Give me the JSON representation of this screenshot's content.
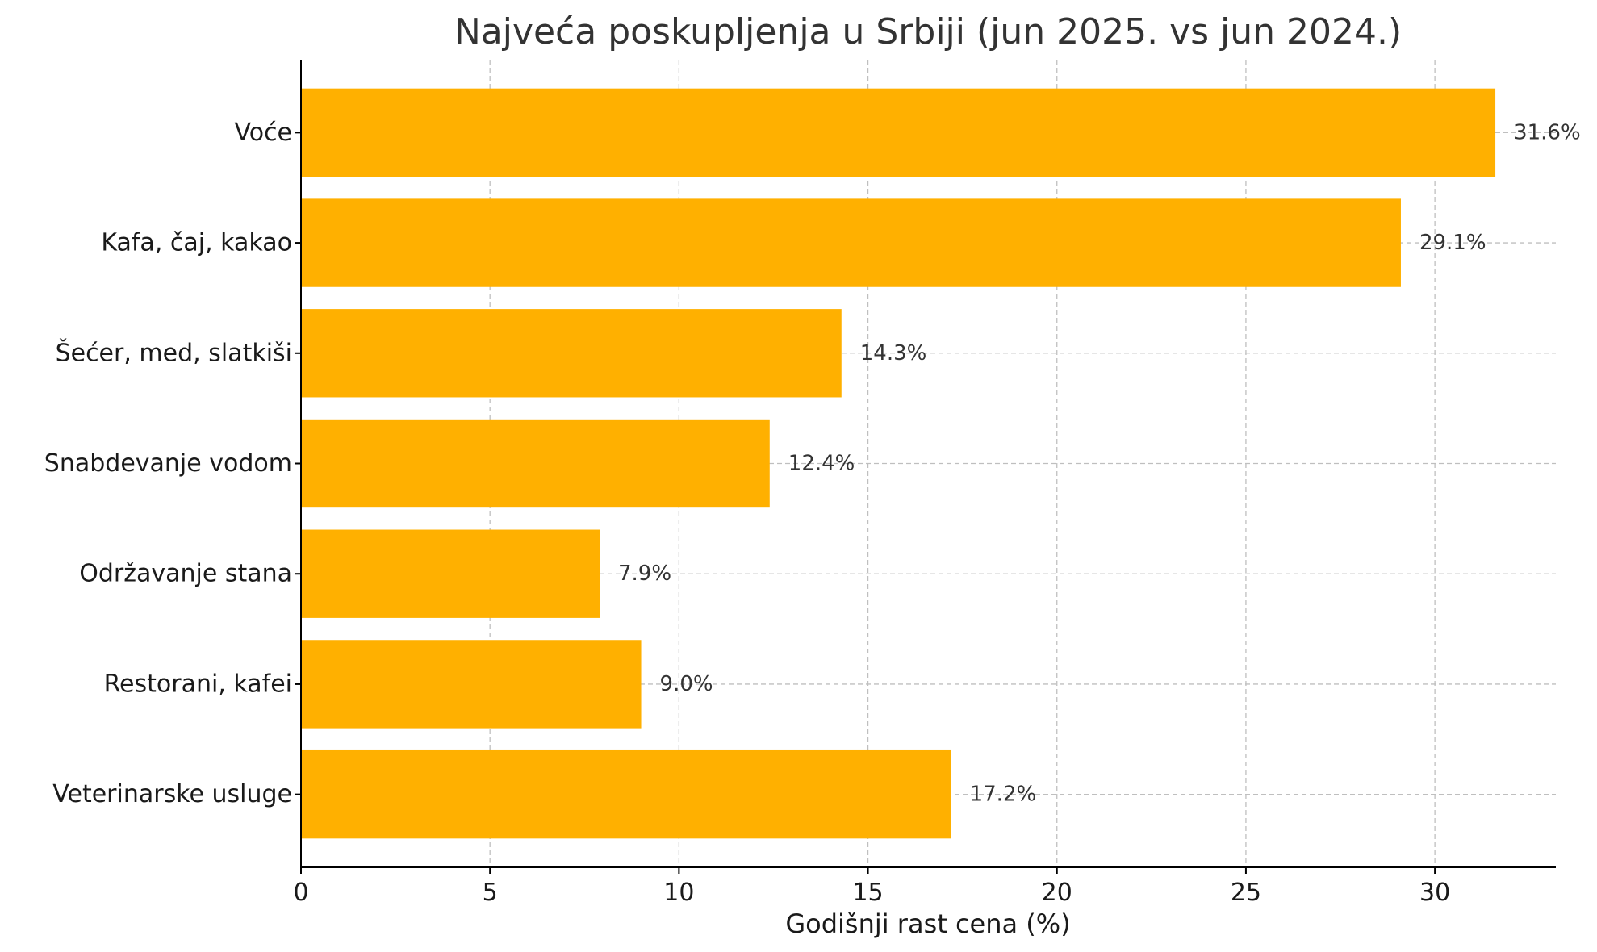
{
  "chart_data": {
    "type": "bar",
    "orientation": "horizontal",
    "title": "Najveća poskupljenja u Srbiji (jun 2025. vs jun 2024.)",
    "xlabel": "Godišnji rast cena (%)",
    "ylabel": "",
    "categories": [
      "Voće",
      "Kafa, čaj, kakao",
      "Šećer, med, slatkiši",
      "Snabdevanje vodom",
      "Održavanje stana",
      "Restorani, kafei",
      "Veterinarske usluge"
    ],
    "values": [
      31.6,
      29.1,
      14.3,
      12.4,
      7.9,
      9.0,
      17.2
    ],
    "value_labels": [
      "31.6%",
      "29.1%",
      "14.3%",
      "12.4%",
      "7.9%",
      "9.0%",
      "17.2%"
    ],
    "xlim": [
      0,
      33.2
    ],
    "xticks": [
      0,
      5,
      10,
      15,
      20,
      25,
      30
    ],
    "xtick_labels": [
      "0",
      "5",
      "10",
      "15",
      "20",
      "25",
      "30"
    ],
    "grid": true,
    "legend": "none",
    "bar_color": "#FFB000"
  }
}
